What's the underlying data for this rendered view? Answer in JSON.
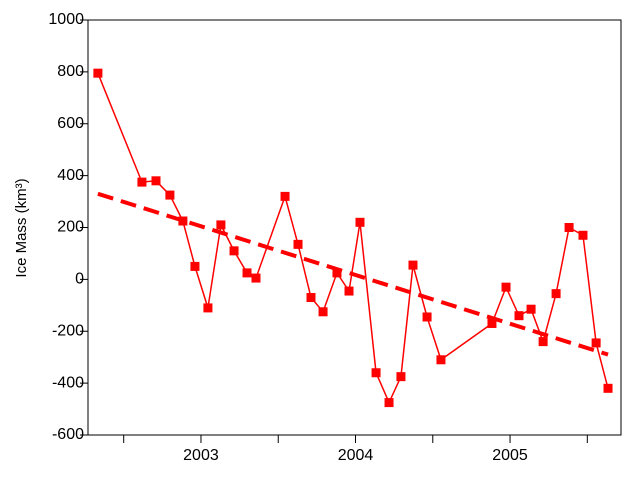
{
  "chart_data": {
    "type": "line",
    "y_label": "Ice Mass (km³)",
    "x": [
      2002.333,
      2002.618,
      2002.709,
      2002.799,
      2002.883,
      2002.961,
      2003.045,
      2003.129,
      2003.214,
      2003.298,
      2003.356,
      2003.544,
      2003.628,
      2003.712,
      2003.79,
      2003.88,
      2003.958,
      2004.029,
      2004.133,
      2004.217,
      2004.294,
      2004.372,
      2004.463,
      2004.553,
      2004.883,
      2004.974,
      2005.058,
      2005.136,
      2005.214,
      2005.298,
      2005.382,
      2005.472,
      2005.557,
      2005.634
    ],
    "series": [
      {
        "color": "#ff0000",
        "values": [
          795,
          375,
          380,
          325,
          225,
          50,
          -110,
          210,
          110,
          25,
          5,
          320,
          135,
          -70,
          -125,
          25,
          -45,
          220,
          -360,
          -475,
          -375,
          55,
          -145,
          -310,
          -170,
          -30,
          -140,
          -115,
          -240,
          -55,
          200,
          170,
          -245,
          -420
        ]
      }
    ],
    "trend": {
      "color": "#ff0000",
      "x": [
        2002.333,
        2005.634
      ],
      "values": [
        330,
        -290
      ]
    },
    "xlim": [
      2002.269,
      2005.718
    ],
    "xticks": [
      2003,
      2004,
      2005
    ],
    "minor_xticks": [
      2002.5,
      2003.5,
      2004.5,
      2005.5
    ],
    "ylim": [
      -600,
      1000
    ],
    "yticks": [
      -600,
      -400,
      -200,
      0,
      200,
      400,
      600,
      800,
      1000
    ]
  }
}
